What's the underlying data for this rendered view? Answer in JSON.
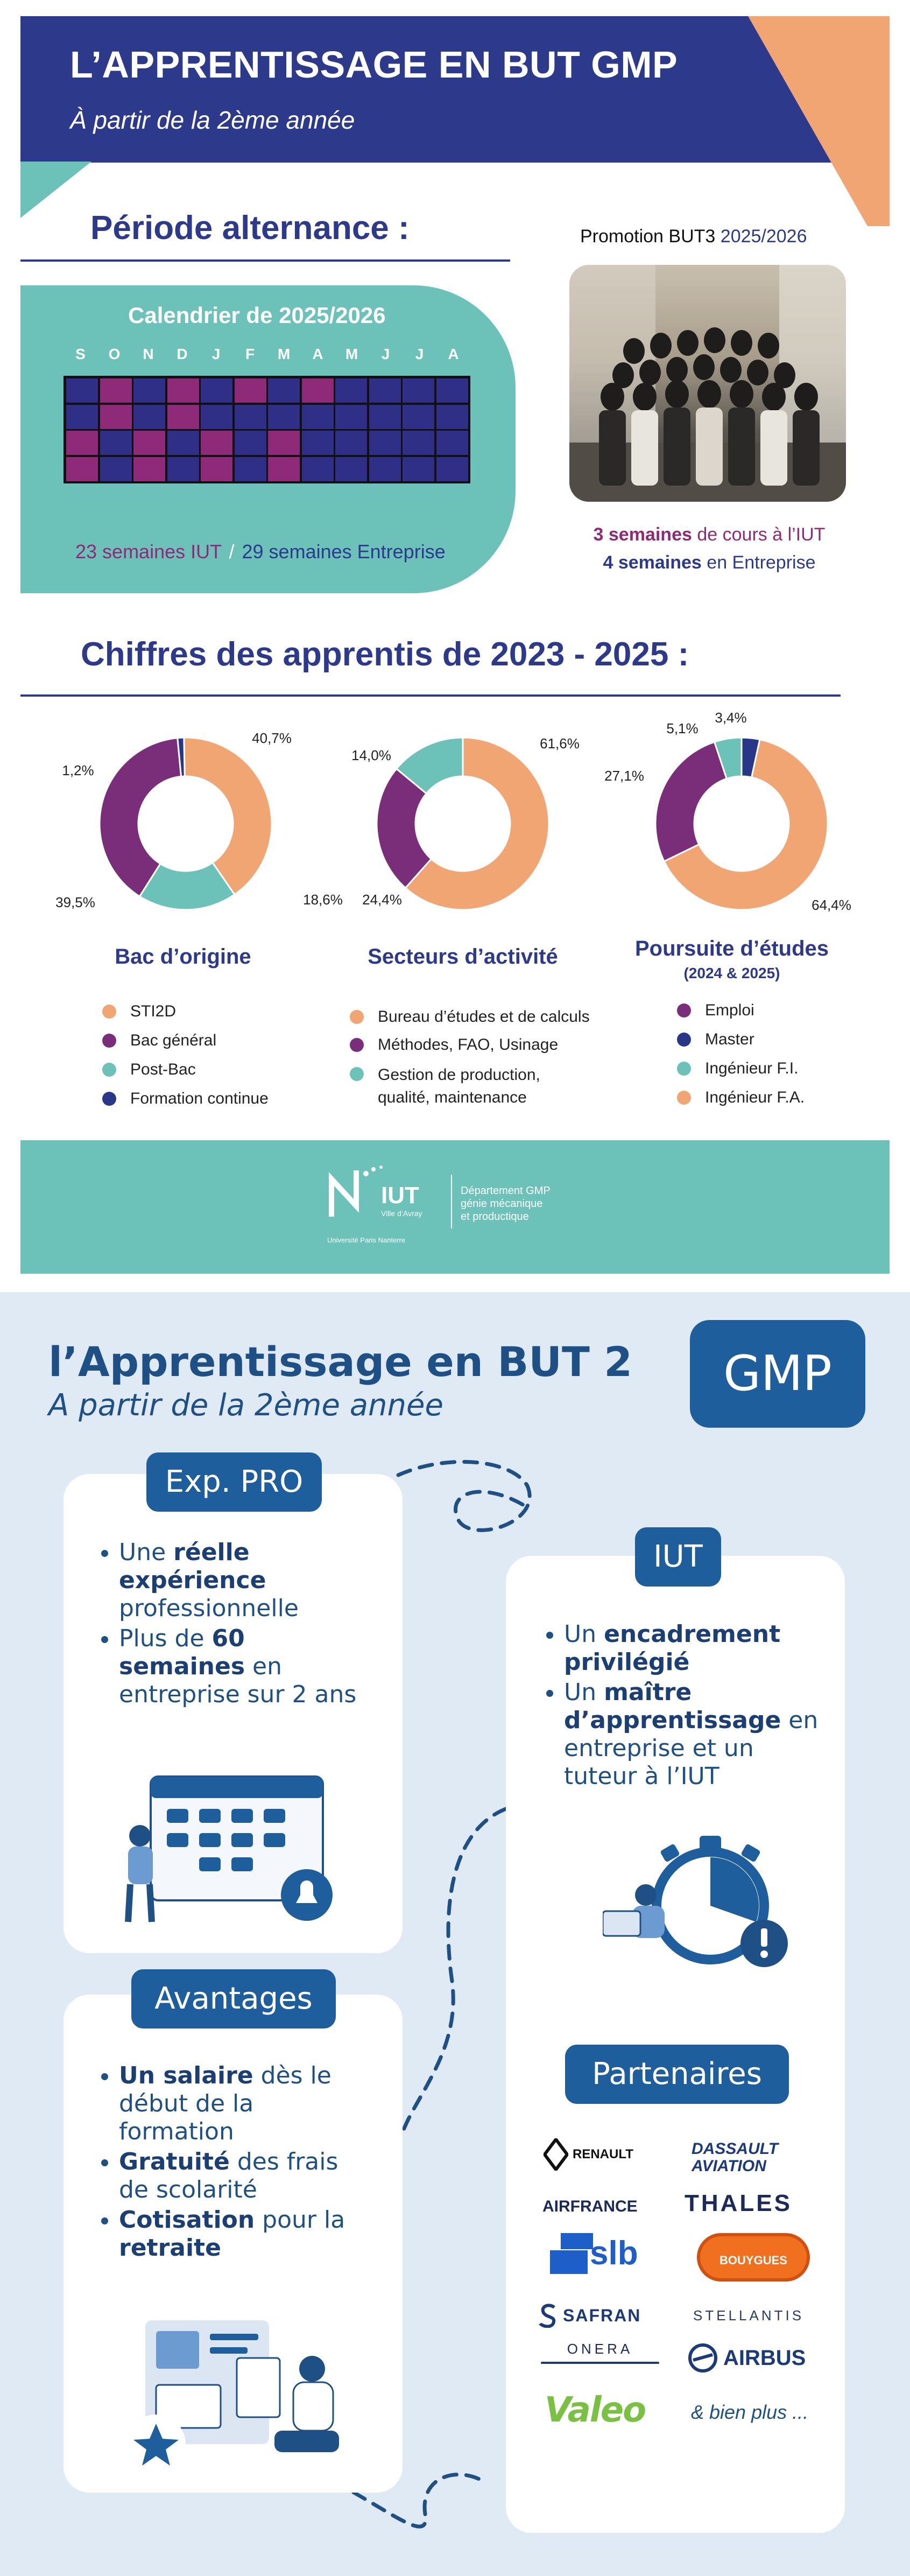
{
  "page1": {
    "header_title": "L’APPRENTISSAGE EN BUT GMP",
    "header_subtitle": "À partir de la 2ème année",
    "periode_title": "Période alternance :",
    "calendar_title": "Calendrier de 2025/2026",
    "months": [
      "S",
      "O",
      "N",
      "D",
      "J",
      "F",
      "M",
      "A",
      "M",
      "J",
      "J",
      "A"
    ],
    "calendar_rows": [
      [
        "E",
        "I",
        "E",
        "I",
        "E",
        "I",
        "E",
        "I",
        "E",
        "E",
        "E",
        "E"
      ],
      [
        "E",
        "I",
        "E",
        "I",
        "E",
        "E",
        "E",
        "E",
        "E",
        "E",
        "E",
        "E"
      ],
      [
        "I",
        "E",
        "I",
        "E",
        "I",
        "E",
        "I",
        "E",
        "E",
        "E",
        "E",
        "E"
      ],
      [
        "I",
        "E",
        "I",
        "E",
        "I",
        "E",
        "I",
        "E",
        "E",
        "E",
        "E",
        "E"
      ]
    ],
    "colors": {
      "iut": "#8e2a78",
      "entreprise": "#2f2f88",
      "teal": "#6cc2b9",
      "navy": "#2a3789",
      "orange": "#f0a573",
      "purple": "#7a2e7a"
    },
    "weeks_iut": "23 semaines IUT",
    "weeks_sep": "/",
    "weeks_ent": "29 semaines Entreprise",
    "promo_label": "Promotion BUT3",
    "promo_year": "2025/2026",
    "rhythm_iut_strong": "3 semaines",
    "rhythm_iut_rest": "de cours à l’IUT",
    "rhythm_ent_strong": "4 semaines",
    "rhythm_ent_rest": "en Entreprise",
    "stats_title": "Chiffres des apprentis de 2023 - 2025 :",
    "charts": [
      {
        "title": "Bac d’origine",
        "subtitle": "",
        "segments": [
          {
            "label": "STI2D",
            "value": 40.7,
            "display": "40,7%",
            "color": "#f0a573"
          },
          {
            "label": "Post-Bac",
            "value": 18.6,
            "display": "18,6%",
            "color": "#6cc2b9"
          },
          {
            "label": "Bac général",
            "value": 39.5,
            "display": "39,5%",
            "color": "#7a2e7a"
          },
          {
            "label": "Formation continue",
            "value": 1.2,
            "display": "1,2%",
            "color": "#2a3789"
          }
        ],
        "legend": [
          {
            "label": "STI2D",
            "color": "#f0a573"
          },
          {
            "label": "Bac général",
            "color": "#7a2e7a"
          },
          {
            "label": "Post-Bac",
            "color": "#6cc2b9"
          },
          {
            "label": "Formation continue",
            "color": "#2a3789"
          }
        ]
      },
      {
        "title": "Secteurs d’activité",
        "subtitle": "",
        "segments": [
          {
            "label": "Bureau d’études et de calculs",
            "value": 61.6,
            "display": "61,6%",
            "color": "#f0a573"
          },
          {
            "label": "Méthodes, FAO, Usinage",
            "value": 24.4,
            "display": "24,4%",
            "color": "#7a2e7a"
          },
          {
            "label": "Gestion de production, qualité, maintenance",
            "value": 14.0,
            "display": "14,0%",
            "color": "#6cc2b9"
          }
        ],
        "legend": [
          {
            "label": "Bureau d’études et de calculs",
            "color": "#f0a573"
          },
          {
            "label": "Méthodes, FAO, Usinage",
            "color": "#7a2e7a"
          },
          {
            "label": "Gestion de production,",
            "label2": "qualité, maintenance",
            "color": "#6cc2b9"
          }
        ]
      },
      {
        "title": "Poursuite d’études",
        "subtitle": "(2024 & 2025)",
        "segments": [
          {
            "label": "Master",
            "value": 3.4,
            "display": "3,4%",
            "color": "#2a3789"
          },
          {
            "label": "Ingénieur F.A.",
            "value": 64.4,
            "display": "64,4%",
            "color": "#f0a573"
          },
          {
            "label": "Emploi",
            "value": 27.1,
            "display": "27,1%",
            "color": "#7a2e7a"
          },
          {
            "label": "Ingénieur F.I.",
            "value": 5.1,
            "display": "5,1%",
            "color": "#6cc2b9"
          }
        ],
        "legend": [
          {
            "label": "Emploi",
            "color": "#7a2e7a"
          },
          {
            "label": "Master",
            "color": "#2a3789"
          },
          {
            "label": "Ingénieur F.I.",
            "color": "#6cc2b9"
          },
          {
            "label": "Ingénieur F.A.",
            "color": "#f0a573"
          }
        ]
      }
    ],
    "footer_logo_name": "IUT",
    "footer_logo_city": "Ville d’Avray",
    "footer_logo_univ": "Université Paris Nanterre",
    "footer_dept_1": "Département GMP",
    "footer_dept_2": "génie mécanique",
    "footer_dept_3": "et productique"
  },
  "page2": {
    "title": "l’Apprentissage en BUT 2",
    "subtitle": "A partir de la 2ème année",
    "badge": "GMP",
    "exp_pro": {
      "label": "Exp. PRO",
      "b1_pre": "Une ",
      "b1_bold": "réelle expérience",
      "b1_post": " professionnelle",
      "b2_pre": "Plus de ",
      "b2_bold": "60 semaines",
      "b2_post": " en entreprise sur 2 ans"
    },
    "iut": {
      "label": "IUT",
      "b1_pre": "Un ",
      "b1_bold": "encadrement privilégié",
      "b2_pre": "Un ",
      "b2_bold": "maître d’apprentissage",
      "b2_post": " en entreprise et un tuteur à l’IUT"
    },
    "avantages": {
      "label": "Avantages",
      "b1_bold": "Un salaire",
      "b1_post": " dès le début de la formation",
      "b2_bold": "Gratuité",
      "b2_post": " des frais de scolarité",
      "b3_bold": "Cotisation",
      "b3_mid": " pour la ",
      "b3_bold2": "retraite"
    },
    "partenaires": {
      "label": "Partenaires",
      "logos": [
        "RENAULT",
        "DASSAULT",
        "AVIATION",
        "AIRFRANCE",
        "THALES",
        "slb",
        "BOUYGUES",
        "SAFRAN",
        "STELLANTIS",
        "ONERA",
        "AIRBUS",
        "Valeo"
      ],
      "more": "& bien plus ..."
    }
  }
}
